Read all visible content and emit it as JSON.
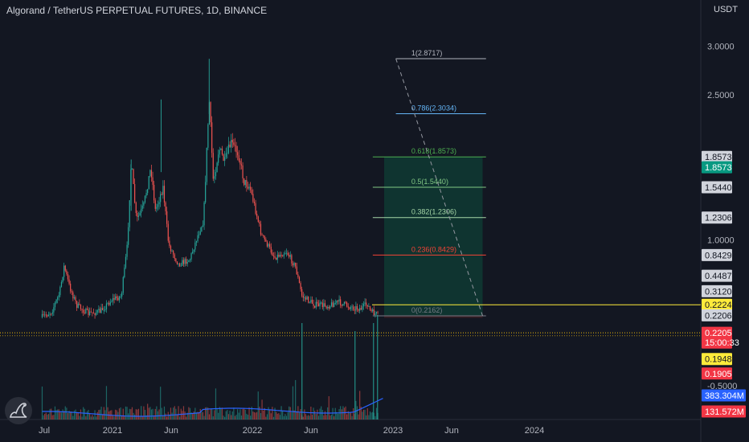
{
  "header": {
    "title": "Algorand / TetherUS PERPETUAL FUTURES, 1D, BINANCE",
    "currency": "USDT"
  },
  "colors": {
    "background": "#131722",
    "up": "#26a69a",
    "down": "#ef5350",
    "grid_text": "#b2b5be",
    "volume_ma": "#2962ff",
    "position_zone": "#0f3a33",
    "price_line": "#f0b90b"
  },
  "chart_data": {
    "type": "candlestick",
    "title": "Algorand / TetherUS PERPETUAL FUTURES, 1D, BINANCE",
    "x_ticks": [
      "Jul",
      "2021",
      "Jun",
      "2022",
      "Jun",
      "2023",
      "Jun",
      "2024"
    ],
    "y_ticks": [
      "3.0000",
      "2.5000",
      "1.0000",
      "-0.5000"
    ],
    "price_path": [
      [
        "2020-06-25",
        0.2
      ],
      [
        "2020-07-20",
        0.26
      ],
      [
        "2020-08-10",
        0.45
      ],
      [
        "2020-08-22",
        0.73
      ],
      [
        "2020-09-05",
        0.52
      ],
      [
        "2020-09-25",
        0.32
      ],
      [
        "2020-10-25",
        0.24
      ],
      [
        "2020-11-25",
        0.26
      ],
      [
        "2020-12-25",
        0.38
      ],
      [
        "2021-01-20",
        0.42
      ],
      [
        "2021-02-05",
        0.95
      ],
      [
        "2021-02-15",
        1.8
      ],
      [
        "2021-03-01",
        1.2
      ],
      [
        "2021-03-20",
        1.35
      ],
      [
        "2021-04-08",
        1.75
      ],
      [
        "2021-04-20",
        1.3
      ],
      [
        "2021-05-10",
        1.55
      ],
      [
        "2021-05-25",
        0.95
      ],
      [
        "2021-06-20",
        0.75
      ],
      [
        "2021-07-20",
        0.8
      ],
      [
        "2021-08-10",
        1.05
      ],
      [
        "2021-08-25",
        1.2
      ],
      [
        "2021-09-09",
        2.45
      ],
      [
        "2021-09-20",
        1.6
      ],
      [
        "2021-10-05",
        1.95
      ],
      [
        "2021-10-20",
        1.8
      ],
      [
        "2021-11-05",
        2.0
      ],
      [
        "2021-11-25",
        1.9
      ],
      [
        "2021-12-10",
        1.6
      ],
      [
        "2021-12-25",
        1.55
      ],
      [
        "2022-01-10",
        1.3
      ],
      [
        "2022-01-25",
        1.05
      ],
      [
        "2022-02-10",
        0.95
      ],
      [
        "2022-03-01",
        0.82
      ],
      [
        "2022-04-01",
        0.88
      ],
      [
        "2022-04-25",
        0.72
      ],
      [
        "2022-05-12",
        0.42
      ],
      [
        "2022-06-15",
        0.33
      ],
      [
        "2022-07-20",
        0.32
      ],
      [
        "2022-08-15",
        0.36
      ],
      [
        "2022-09-15",
        0.31
      ],
      [
        "2022-10-15",
        0.29
      ],
      [
        "2022-11-01",
        0.34
      ],
      [
        "2022-11-09",
        0.26
      ],
      [
        "2022-11-20",
        0.24
      ],
      [
        "2022-11-30",
        0.2205
      ]
    ],
    "fibonacci": {
      "start_date": "2023-01-15",
      "end_date": "2023-09-10",
      "levels": [
        {
          "ratio": "1",
          "price": 2.8717,
          "label": "1(2.8717)",
          "color": "#b2b5be",
          "start_date": "2023-01-15"
        },
        {
          "ratio": "0.786",
          "price": 2.3034,
          "label": "0.786(2.3034)",
          "color": "#64b5f6",
          "start_date": "2023-01-15"
        },
        {
          "ratio": "0.618",
          "price": 1.8573,
          "label": "0.618(1.8573)",
          "color": "#4caf50",
          "start_date": "2022-11-15"
        },
        {
          "ratio": "0.5",
          "price": 1.544,
          "label": "0.5(1.5440)",
          "color": "#81c784",
          "start_date": "2022-11-15"
        },
        {
          "ratio": "0.382",
          "price": 1.2306,
          "label": "0.382(1.2306)",
          "color": "#a5d6a7",
          "start_date": "2022-11-15"
        },
        {
          "ratio": "0.236",
          "price": 0.8429,
          "label": "0.236(0.8429)",
          "color": "#f44336",
          "start_date": "2022-11-15"
        },
        {
          "ratio": "0",
          "price": 0.2162,
          "label": "0(0.2162)",
          "color": "#787b86",
          "start_date": "2022-11-15"
        }
      ]
    },
    "position": {
      "start_date": "2022-12-15",
      "end_date": "2023-09-01",
      "entry": 0.2206,
      "target": 1.8573,
      "stop": 0.1948
    },
    "price_tags": [
      {
        "value": "1.8573",
        "price": 1.8573,
        "bg": "#d1d4dc",
        "fg": "#131722"
      },
      {
        "value": "1.8573",
        "price": 1.75,
        "bg": "#089981",
        "fg": "#ffffff"
      },
      {
        "value": "1.5440",
        "price": 1.544,
        "bg": "#d1d4dc",
        "fg": "#131722"
      },
      {
        "value": "1.2306",
        "price": 1.2306,
        "bg": "#d1d4dc",
        "fg": "#131722"
      },
      {
        "value": "0.8429",
        "price": 0.8429,
        "bg": "#d1d4dc",
        "fg": "#131722"
      },
      {
        "value": "0.4487",
        "price": 0.63,
        "bg": "#d1d4dc",
        "fg": "#131722"
      },
      {
        "value": "0.3120",
        "price": 0.47,
        "bg": "#d1d4dc",
        "fg": "#131722"
      },
      {
        "value": "0.2224",
        "price": 0.33,
        "bg": "#ffeb3b",
        "fg": "#131722"
      },
      {
        "value": "0.2206",
        "price": 0.2206,
        "bg": "#d1d4dc",
        "fg": "#131722"
      },
      {
        "value": "0.2205",
        "price": 0.04,
        "bg": "#f23645",
        "fg": "#ffffff"
      },
      {
        "value": "15:00:33",
        "price": -0.06,
        "bg": "#f23645",
        "fg": "#ffffff"
      },
      {
        "value": "0.1948",
        "price": -0.23,
        "bg": "#ffeb3b",
        "fg": "#131722"
      },
      {
        "value": "0.1905",
        "price": -0.38,
        "bg": "#f23645",
        "fg": "#ffffff"
      }
    ],
    "volume_tags": [
      {
        "value": "383.304M",
        "bg": "#2962ff",
        "fg": "#ffffff"
      },
      {
        "value": "131.572M",
        "bg": "#f23645",
        "fg": "#ffffff"
      }
    ]
  }
}
